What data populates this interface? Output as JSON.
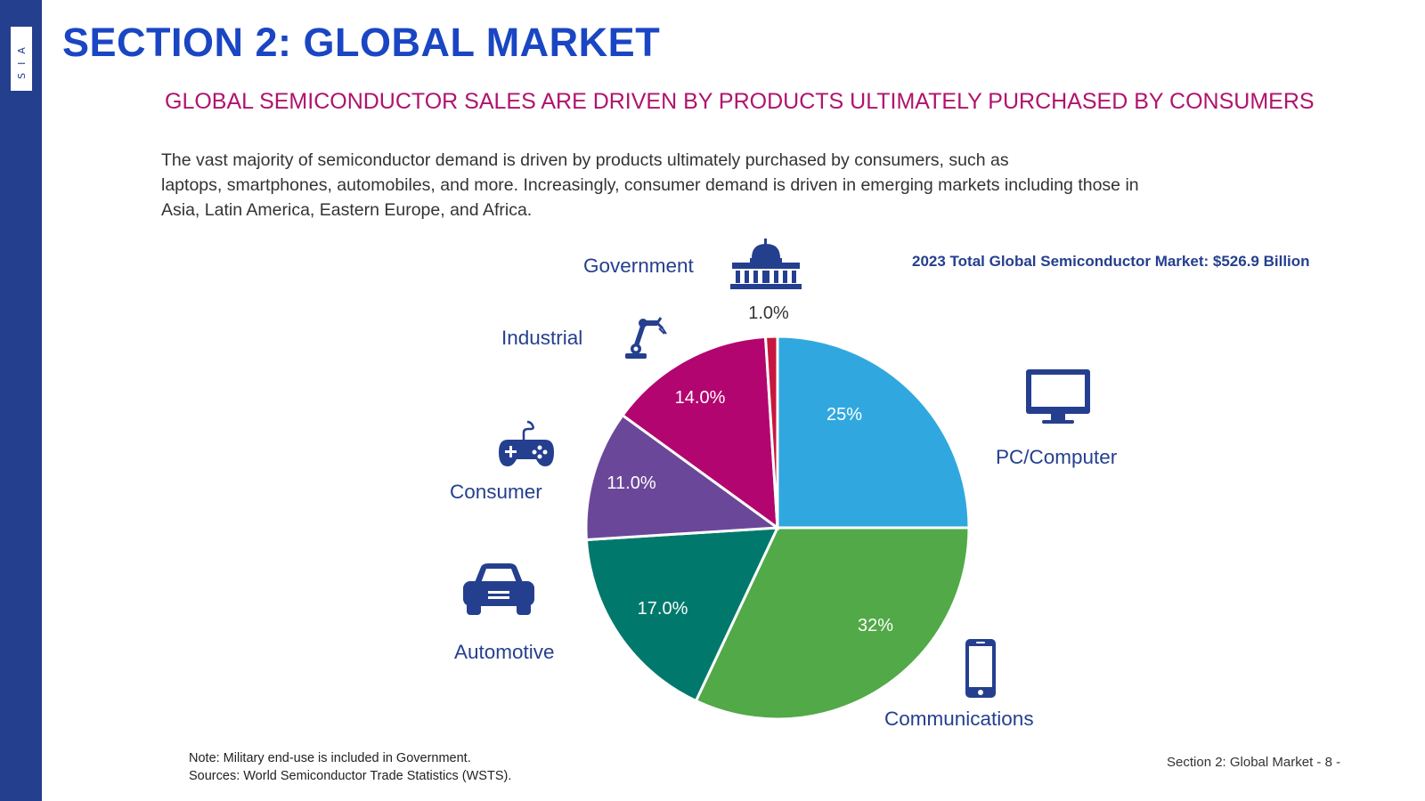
{
  "sidebar": {
    "logo": "SIA"
  },
  "header": {
    "title": "SECTION 2: GLOBAL MARKET",
    "subtitle": "GLOBAL SEMICONDUCTOR SALES ARE DRIVEN BY PRODUCTS ULTIMATELY PURCHASED BY CONSUMERS"
  },
  "body": {
    "line1": "The vast majority of semiconductor demand is driven by products ultimately purchased by consumers, such as",
    "line2": "laptops, smartphones, automobiles, and more. Increasingly, consumer demand is driven in emerging markets including those in",
    "line3": "Asia, Latin America, Eastern Europe, and Africa."
  },
  "chart_data": {
    "type": "pie",
    "title": "2023 Total Global Semiconductor Market: $526.9 Billion",
    "segments": [
      {
        "name": "PC/Computer",
        "value": 25,
        "label": "25%",
        "color": "#30a8df",
        "icon": "desktop-monitor-icon"
      },
      {
        "name": "Communications",
        "value": 32,
        "label": "32%",
        "color": "#52a947",
        "icon": "smartphone-icon"
      },
      {
        "name": "Automotive",
        "value": 17,
        "label": "17.0%",
        "color": "#00796c",
        "icon": "car-icon"
      },
      {
        "name": "Consumer",
        "value": 11,
        "label": "11.0%",
        "color": "#6b4799",
        "icon": "game-controller-icon"
      },
      {
        "name": "Industrial",
        "value": 14,
        "label": "14.0%",
        "color": "#b3056f",
        "icon": "robot-arm-icon"
      },
      {
        "name": "Government",
        "value": 1,
        "label": "1.0%",
        "color": "#c8173f",
        "icon": "capitol-building-icon"
      }
    ]
  },
  "colors": {
    "brand_blue": "#253f8f",
    "title_blue": "#1a46c4",
    "subtitle_magenta": "#b0136e"
  },
  "footnote": {
    "note": "Note: Military end-use is included in Government.",
    "sources": "Sources: World Semiconductor Trade Statistics (WSTS)."
  },
  "footer": {
    "page": "Section 2: Global Market - 8 -"
  }
}
